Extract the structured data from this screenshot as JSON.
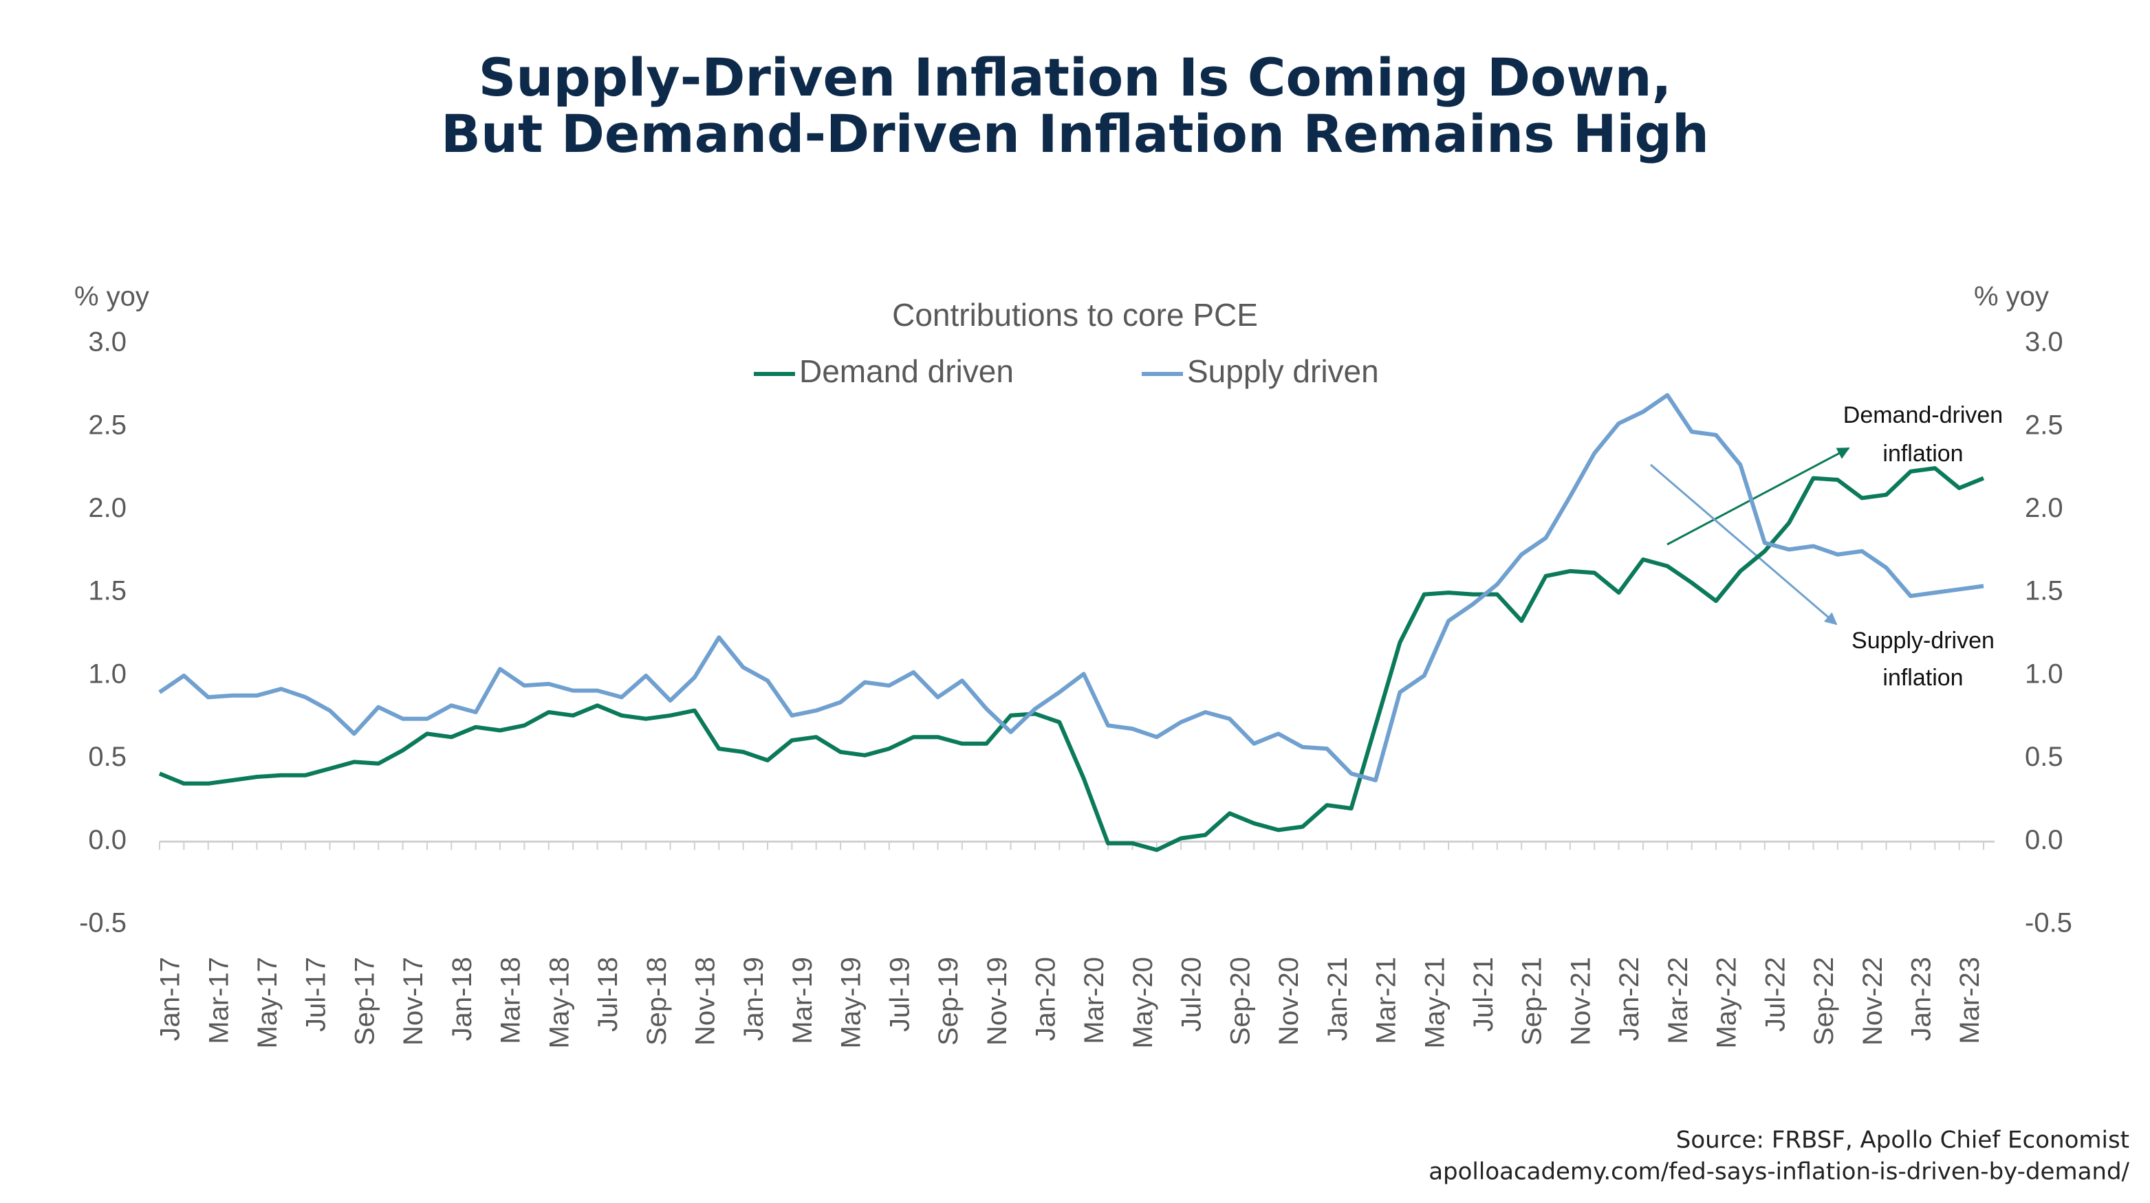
{
  "chart_data": {
    "type": "line",
    "title": [
      "Supply-Driven Inflation Is Coming Down,",
      "But Demand-Driven Inflation Remains High"
    ],
    "subtitle": "Contributions to core PCE",
    "y_label": "% yoy",
    "y2_label": "% yoy",
    "categories": [
      "Jan-17",
      null,
      "Mar-17",
      null,
      "May-17",
      null,
      "Jul-17",
      null,
      "Sep-17",
      null,
      "Nov-17",
      null,
      "Jan-18",
      null,
      "Mar-18",
      null,
      "May-18",
      null,
      "Jul-18",
      null,
      "Sep-18",
      null,
      "Nov-18",
      null,
      "Jan-19",
      null,
      "Mar-19",
      null,
      "May-19",
      null,
      "Jul-19",
      null,
      "Sep-19",
      null,
      "Nov-19",
      null,
      "Jan-20",
      null,
      "Mar-20",
      null,
      "May-20",
      null,
      "Jul-20",
      null,
      "Sep-20",
      null,
      "Nov-20",
      null,
      "Jan-21",
      null,
      "Mar-21",
      null,
      "May-21",
      null,
      "Jul-21",
      null,
      "Sep-21",
      null,
      "Nov-21",
      null,
      "Jan-22",
      null,
      "Mar-22",
      null,
      "May-22",
      null,
      "Jul-22",
      null,
      "Sep-22",
      null,
      "Nov-22",
      null,
      "Jan-23",
      null,
      "Mar-23",
      null
    ],
    "series": [
      {
        "name": "Demand driven",
        "color": "#0b7a5a",
        "values": [
          0.41,
          0.35,
          0.35,
          0.37,
          0.39,
          0.4,
          0.4,
          0.44,
          0.48,
          0.47,
          0.55,
          0.65,
          0.63,
          0.69,
          0.67,
          0.7,
          0.78,
          0.76,
          0.82,
          0.76,
          0.74,
          0.76,
          0.79,
          0.56,
          0.54,
          0.49,
          0.61,
          0.63,
          0.54,
          0.52,
          0.56,
          0.63,
          0.63,
          0.59,
          0.59,
          0.76,
          0.77,
          0.72,
          0.38,
          -0.01,
          -0.01,
          -0.05,
          0.02,
          0.04,
          0.17,
          0.11,
          0.07,
          0.09,
          0.22,
          0.2,
          0.7,
          1.2,
          1.49,
          1.5,
          1.49,
          1.49,
          1.33,
          1.6,
          1.63,
          1.62,
          1.5,
          1.7,
          1.66,
          1.56,
          1.45,
          1.63,
          1.75,
          1.92,
          2.19,
          2.18,
          2.07,
          2.09,
          2.23,
          2.25,
          2.13,
          2.19
        ]
      },
      {
        "name": "Supply driven",
        "color": "#6fa0cf",
        "values": [
          0.9,
          1.0,
          0.87,
          0.88,
          0.88,
          0.92,
          0.87,
          0.79,
          0.65,
          0.81,
          0.74,
          0.74,
          0.82,
          0.78,
          1.04,
          0.94,
          0.95,
          0.91,
          0.91,
          0.87,
          1.0,
          0.85,
          0.99,
          1.23,
          1.05,
          0.97,
          0.76,
          0.79,
          0.84,
          0.96,
          0.94,
          1.02,
          0.87,
          0.97,
          0.8,
          0.66,
          0.8,
          0.9,
          1.01,
          0.7,
          0.68,
          0.63,
          0.72,
          0.78,
          0.74,
          0.59,
          0.65,
          0.57,
          0.56,
          0.41,
          0.37,
          0.9,
          1.0,
          1.33,
          1.43,
          1.55,
          1.73,
          1.83,
          2.08,
          2.34,
          2.52,
          2.59,
          2.69,
          2.47,
          2.45,
          2.27,
          1.8,
          1.76,
          1.78,
          1.73,
          1.75,
          1.65,
          1.48,
          1.5,
          1.52,
          1.54
        ]
      }
    ],
    "ylim": [
      -0.5,
      3.0
    ],
    "yticks": [
      {
        "value": 3.0,
        "label": "3.0"
      },
      2.5,
      {
        "value": 2.0,
        "label": "2.0"
      },
      1.5,
      {
        "value": 1.0,
        "label": "1.0"
      },
      0.5,
      {
        "value": 0.0,
        "label": "0.0"
      },
      -0.5
    ],
    "y2lim": [
      -0.5,
      3.0
    ],
    "y2ticks": [
      {
        "value": 3.0,
        "label": "3.0"
      },
      2.5,
      {
        "value": 2.0,
        "label": "2.0"
      },
      1.5,
      {
        "value": 1.0,
        "label": "1.0"
      },
      0.5,
      {
        "value": 0.0,
        "label": "0.0"
      },
      -0.5
    ],
    "legend": "top",
    "annotations": [
      [
        "Demand-driven",
        "inflation"
      ],
      [
        "Supply-driven",
        "inflation"
      ]
    ],
    "source": "Source: FRBSF, Apollo Chief Economist",
    "url": "apolloacademy.com/fed-says-inflation-is-driven-by-demand/"
  }
}
